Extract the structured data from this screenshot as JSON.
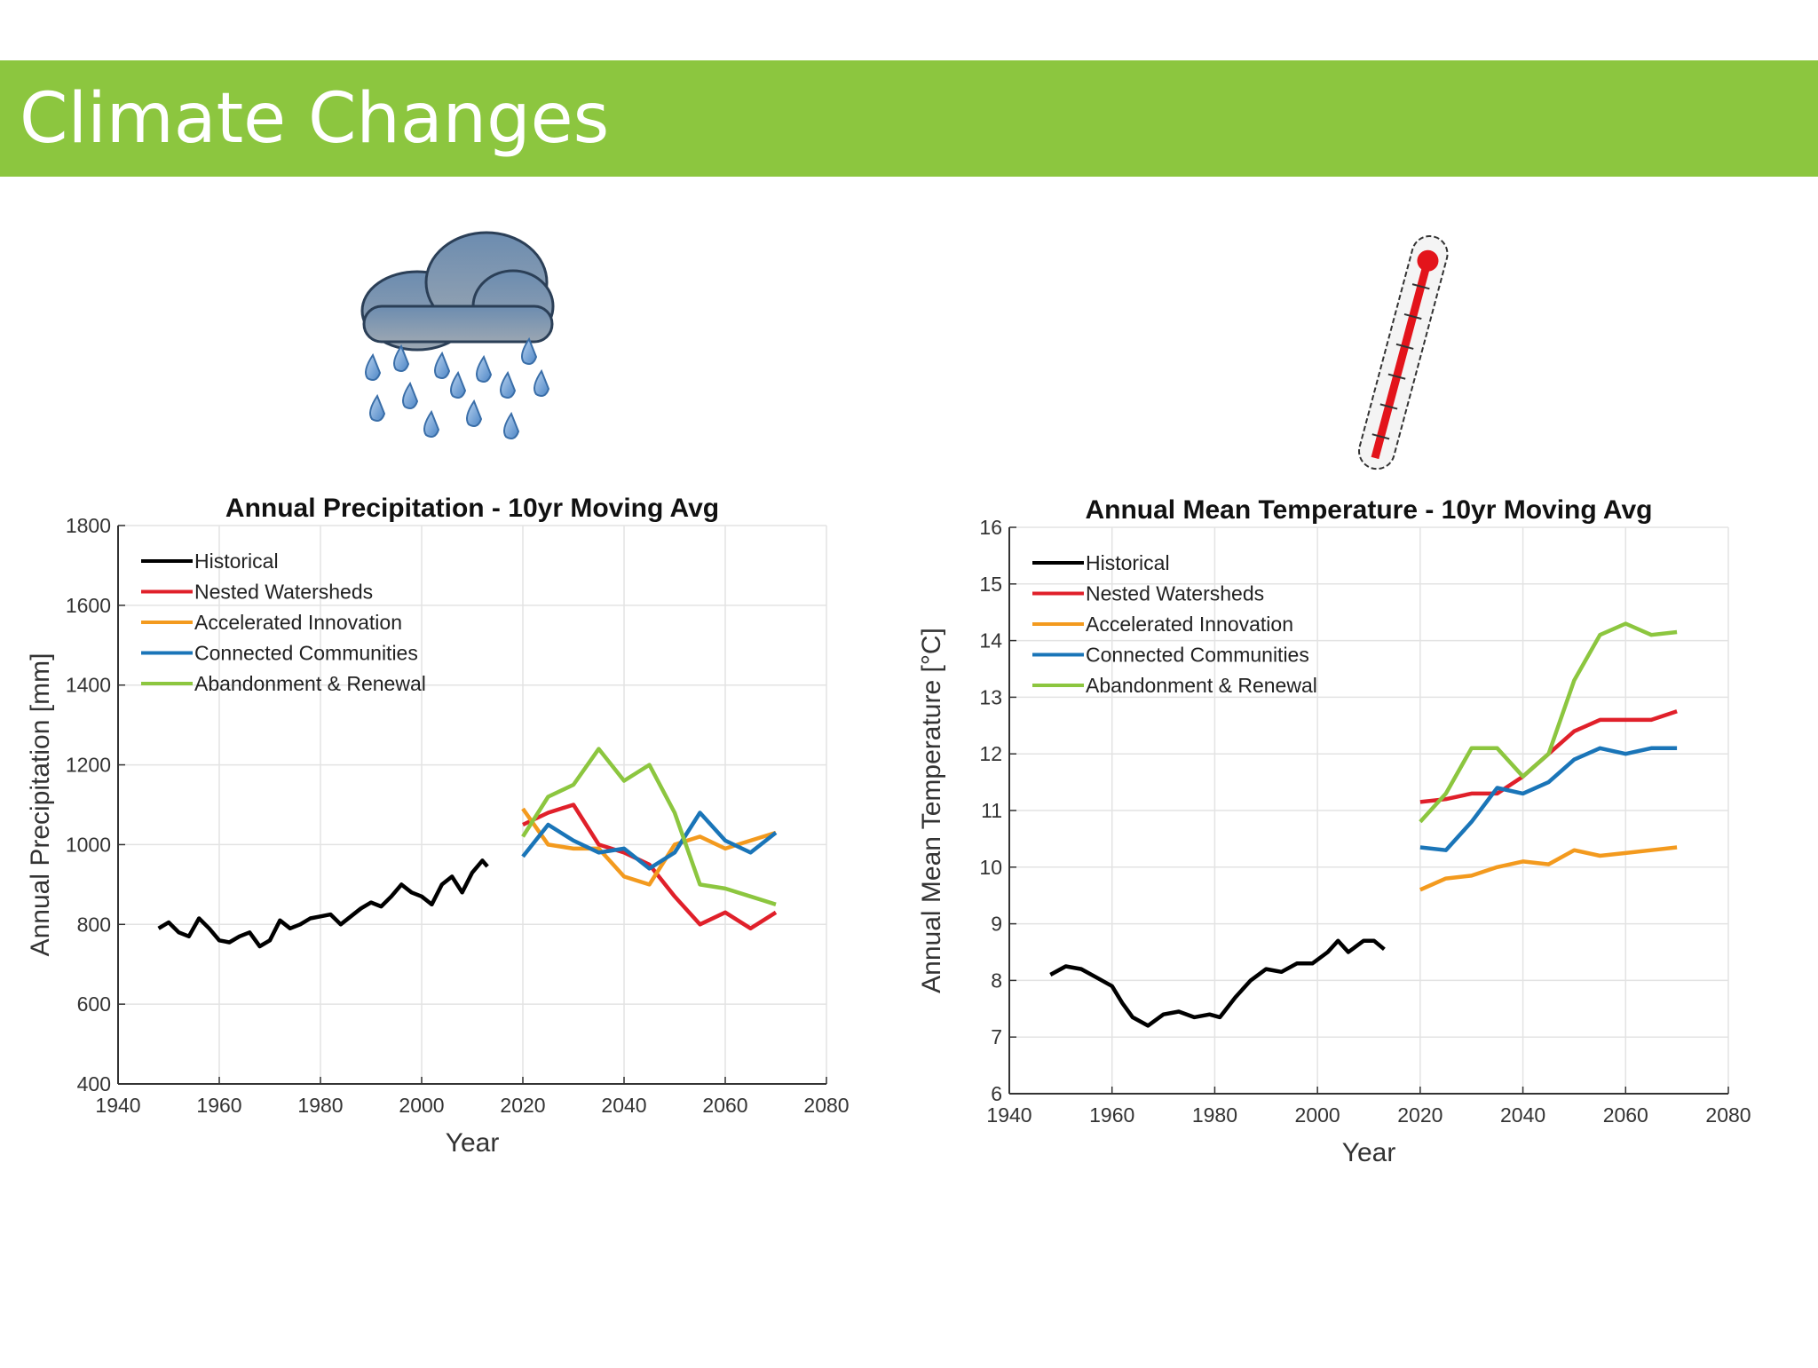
{
  "slide_title": "Climate Changes",
  "chart_data": [
    {
      "type": "line",
      "title": "Annual Precipitation - 10yr Moving Avg",
      "x_label": "Year",
      "y_label": "Annual Precipitation [mm]",
      "xlim": [
        1940,
        2080
      ],
      "xticks": [
        1940,
        1960,
        1980,
        2000,
        2020,
        2040,
        2060,
        2080
      ],
      "ylim": [
        400,
        1800
      ],
      "yticks": [
        400,
        600,
        800,
        1000,
        1200,
        1400,
        1600,
        1800
      ],
      "grid": true,
      "legend": "upper-left",
      "series": [
        {
          "name": "Historical",
          "color": "#000000",
          "x": [
            1948,
            1950,
            1952,
            1954,
            1956,
            1958,
            1960,
            1962,
            1964,
            1966,
            1968,
            1970,
            1972,
            1974,
            1976,
            1978,
            1980,
            1982,
            1984,
            1986,
            1988,
            1990,
            1992,
            1994,
            1996,
            1998,
            2000,
            2002,
            2004,
            2006,
            2008,
            2010,
            2012,
            2013
          ],
          "values": [
            790,
            805,
            780,
            770,
            815,
            790,
            760,
            755,
            770,
            780,
            745,
            760,
            810,
            790,
            800,
            815,
            820,
            825,
            800,
            820,
            840,
            855,
            845,
            870,
            900,
            880,
            870,
            850,
            900,
            920,
            880,
            930,
            960,
            945
          ]
        },
        {
          "name": "Nested Watersheds",
          "color": "#e0202a",
          "x": [
            2020,
            2025,
            2030,
            2035,
            2040,
            2045,
            2050,
            2055,
            2060,
            2065,
            2070
          ],
          "values": [
            1050,
            1080,
            1100,
            1000,
            980,
            950,
            870,
            800,
            830,
            790,
            830
          ]
        },
        {
          "name": "Accelerated Innovation",
          "color": "#f39a1e",
          "x": [
            2020,
            2025,
            2030,
            2035,
            2040,
            2045,
            2050,
            2055,
            2060,
            2065,
            2070
          ],
          "values": [
            1090,
            1000,
            990,
            990,
            920,
            900,
            1000,
            1020,
            990,
            1010,
            1030
          ]
        },
        {
          "name": "Connected Communities",
          "color": "#1a75b8",
          "x": [
            2020,
            2025,
            2030,
            2035,
            2040,
            2045,
            2050,
            2055,
            2060,
            2065,
            2070
          ],
          "values": [
            970,
            1050,
            1010,
            980,
            990,
            940,
            980,
            1080,
            1010,
            980,
            1030
          ]
        },
        {
          "name": "Abandonment & Renewal",
          "color": "#8cc63f",
          "x": [
            2020,
            2025,
            2030,
            2035,
            2040,
            2045,
            2050,
            2055,
            2060,
            2065,
            2070
          ],
          "values": [
            1020,
            1120,
            1150,
            1240,
            1160,
            1200,
            1080,
            900,
            890,
            870,
            850
          ]
        }
      ]
    },
    {
      "type": "line",
      "title": "Annual Mean Temperature - 10yr Moving Avg",
      "x_label": "Year",
      "y_label": "Annual Mean Temperature [°C]",
      "xlim": [
        1940,
        2080
      ],
      "xticks": [
        1940,
        1960,
        1980,
        2000,
        2020,
        2040,
        2060,
        2080
      ],
      "ylim": [
        6,
        16
      ],
      "yticks": [
        6,
        7,
        8,
        9,
        10,
        11,
        12,
        13,
        14,
        15,
        16
      ],
      "grid": true,
      "legend": "upper-left",
      "series": [
        {
          "name": "Historical",
          "color": "#000000",
          "x": [
            1948,
            1951,
            1954,
            1957,
            1960,
            1962,
            1964,
            1967,
            1970,
            1973,
            1976,
            1979,
            1981,
            1984,
            1987,
            1990,
            1993,
            1996,
            1999,
            2002,
            2004,
            2006,
            2009,
            2011,
            2013
          ],
          "values": [
            8.1,
            8.25,
            8.2,
            8.05,
            7.9,
            7.6,
            7.35,
            7.2,
            7.4,
            7.45,
            7.35,
            7.4,
            7.35,
            7.7,
            8.0,
            8.2,
            8.15,
            8.3,
            8.3,
            8.5,
            8.7,
            8.5,
            8.7,
            8.7,
            8.55
          ]
        },
        {
          "name": "Nested Watersheds",
          "color": "#e0202a",
          "x": [
            2020,
            2025,
            2030,
            2035,
            2040,
            2045,
            2050,
            2055,
            2060,
            2065,
            2070
          ],
          "values": [
            11.15,
            11.2,
            11.3,
            11.3,
            11.6,
            12.0,
            12.4,
            12.6,
            12.6,
            12.6,
            12.75
          ]
        },
        {
          "name": "Accelerated Innovation",
          "color": "#f39a1e",
          "x": [
            2020,
            2025,
            2030,
            2035,
            2040,
            2045,
            2050,
            2055,
            2060,
            2065,
            2070
          ],
          "values": [
            9.6,
            9.8,
            9.85,
            10.0,
            10.1,
            10.05,
            10.3,
            10.2,
            10.25,
            10.3,
            10.35
          ]
        },
        {
          "name": "Connected Communities",
          "color": "#1a75b8",
          "x": [
            2020,
            2025,
            2030,
            2035,
            2040,
            2045,
            2050,
            2055,
            2060,
            2065,
            2070
          ],
          "values": [
            10.35,
            10.3,
            10.8,
            11.4,
            11.3,
            11.5,
            11.9,
            12.1,
            12.0,
            12.1,
            12.1
          ]
        },
        {
          "name": "Abandonment & Renewal",
          "color": "#8cc63f",
          "x": [
            2020,
            2025,
            2030,
            2035,
            2040,
            2045,
            2050,
            2055,
            2060,
            2065,
            2070
          ],
          "values": [
            10.8,
            11.3,
            12.1,
            12.1,
            11.6,
            12.0,
            13.3,
            14.1,
            14.3,
            14.1,
            14.15
          ]
        }
      ]
    }
  ]
}
